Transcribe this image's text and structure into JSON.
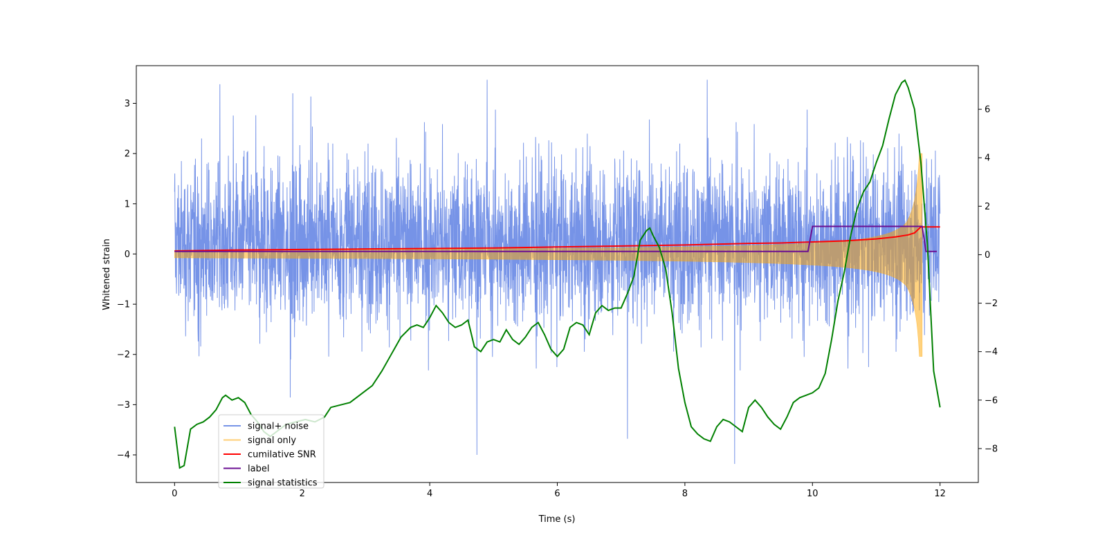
{
  "chart_data": {
    "type": "line",
    "xlabel": "Time (s)",
    "ylabel": "Whitened strain",
    "xlim": [
      -0.6,
      12.6
    ],
    "ylim": [
      -4.55,
      3.75
    ],
    "y2lim": [
      -9.4,
      7.8
    ],
    "xticks": [
      0,
      2,
      4,
      6,
      8,
      10,
      12
    ],
    "yticks": [
      -4,
      -3,
      -2,
      -1,
      0,
      1,
      2,
      3
    ],
    "y2ticks": [
      -8,
      -6,
      -4,
      -2,
      0,
      2,
      4,
      6
    ],
    "grid": false,
    "legend_position": "lower-left",
    "noise": {
      "name": "signal+ noise",
      "color": "#6f8de6",
      "t_range": [
        0,
        12
      ],
      "approx_envelope": [
        -1.9,
        2.6
      ],
      "extreme_peaks": [
        {
          "t": 0.71,
          "y": 3.38
        },
        {
          "t": 4.9,
          "y": 3.47
        },
        {
          "t": 8.35,
          "y": 3.47
        },
        {
          "t": 4.74,
          "y": -4.0
        },
        {
          "t": 8.78,
          "y": -4.18
        },
        {
          "t": 7.1,
          "y": -3.68
        }
      ]
    },
    "signal": {
      "name": "signal only",
      "color": "#ffa500",
      "t_range": [
        0,
        11.72
      ],
      "merger_time": 11.72,
      "peak_amplitude": 2.0
    },
    "cumulative_snr": {
      "name": "cumilative SNR",
      "color": "#ff0000",
      "x": [
        0,
        1,
        2,
        3,
        4,
        5,
        6,
        7,
        8,
        9,
        9.5,
        10,
        10.5,
        11,
        11.3,
        11.5,
        11.6,
        11.7,
        12
      ],
      "y": [
        0.06,
        0.08,
        0.09,
        0.1,
        0.11,
        0.12,
        0.14,
        0.16,
        0.18,
        0.21,
        0.22,
        0.24,
        0.26,
        0.3,
        0.34,
        0.38,
        0.42,
        0.54,
        0.54
      ]
    },
    "label": {
      "name": "label",
      "color": "#6a0d91",
      "x": [
        0,
        9.93,
        10.0,
        11.72,
        11.78,
        11.95
      ],
      "y": [
        0.05,
        0.05,
        0.55,
        0.55,
        0.05,
        0.05
      ]
    },
    "signal_statistics": {
      "name": "signal statistics",
      "color": "#008000",
      "axis": "right",
      "x": [
        0,
        0.08,
        0.15,
        0.25,
        0.35,
        0.45,
        0.55,
        0.65,
        0.75,
        0.8,
        0.9,
        1.0,
        1.1,
        1.2,
        1.3,
        1.4,
        1.5,
        1.6,
        1.75,
        1.9,
        2.05,
        2.2,
        2.35,
        2.45,
        2.6,
        2.75,
        2.9,
        3.0,
        3.1,
        3.25,
        3.4,
        3.55,
        3.7,
        3.8,
        3.9,
        4.0,
        4.1,
        4.2,
        4.3,
        4.4,
        4.5,
        4.6,
        4.7,
        4.8,
        4.9,
        5.0,
        5.1,
        5.2,
        5.3,
        5.4,
        5.5,
        5.6,
        5.7,
        5.8,
        5.9,
        6.0,
        6.1,
        6.2,
        6.3,
        6.4,
        6.5,
        6.6,
        6.7,
        6.8,
        6.9,
        7.0,
        7.1,
        7.2,
        7.3,
        7.4,
        7.45,
        7.5,
        7.6,
        7.7,
        7.8,
        7.9,
        8.0,
        8.1,
        8.2,
        8.3,
        8.4,
        8.5,
        8.6,
        8.7,
        8.8,
        8.9,
        9.0,
        9.1,
        9.2,
        9.3,
        9.4,
        9.5,
        9.6,
        9.7,
        9.8,
        9.9,
        10.0,
        10.1,
        10.2,
        10.3,
        10.4,
        10.5,
        10.6,
        10.7,
        10.8,
        10.9,
        11.0,
        11.1,
        11.2,
        11.3,
        11.4,
        11.45,
        11.5,
        11.6,
        11.7,
        11.8,
        11.9,
        12.0
      ],
      "y": [
        -7.1,
        -8.8,
        -8.7,
        -7.2,
        -7.0,
        -6.9,
        -6.7,
        -6.4,
        -5.9,
        -5.8,
        -6.0,
        -5.9,
        -6.1,
        -6.6,
        -6.9,
        -7.3,
        -7.5,
        -7.3,
        -7.0,
        -6.9,
        -6.8,
        -6.9,
        -6.7,
        -6.3,
        -6.2,
        -6.1,
        -5.8,
        -5.6,
        -5.4,
        -4.8,
        -4.1,
        -3.4,
        -3.0,
        -2.9,
        -3.0,
        -2.6,
        -2.1,
        -2.4,
        -2.8,
        -3.0,
        -2.9,
        -2.7,
        -3.8,
        -4.0,
        -3.6,
        -3.5,
        -3.6,
        -3.1,
        -3.5,
        -3.7,
        -3.4,
        -3.0,
        -2.8,
        -3.3,
        -3.9,
        -4.2,
        -3.9,
        -3.0,
        -2.8,
        -2.9,
        -3.3,
        -2.4,
        -2.1,
        -2.3,
        -2.2,
        -2.2,
        -1.6,
        -0.9,
        0.6,
        1.0,
        1.1,
        0.8,
        0.3,
        -0.6,
        -2.4,
        -4.7,
        -6.1,
        -7.1,
        -7.4,
        -7.6,
        -7.7,
        -7.1,
        -6.8,
        -6.9,
        -7.1,
        -7.3,
        -6.3,
        -6.0,
        -6.3,
        -6.7,
        -7.0,
        -7.2,
        -6.7,
        -6.1,
        -5.9,
        -5.8,
        -5.7,
        -5.5,
        -4.9,
        -3.5,
        -1.9,
        -0.7,
        0.8,
        1.9,
        2.6,
        3.0,
        3.8,
        4.5,
        5.6,
        6.6,
        7.1,
        7.2,
        6.9,
        6.0,
        3.8,
        0.5,
        -4.8,
        -6.3
      ]
    }
  }
}
